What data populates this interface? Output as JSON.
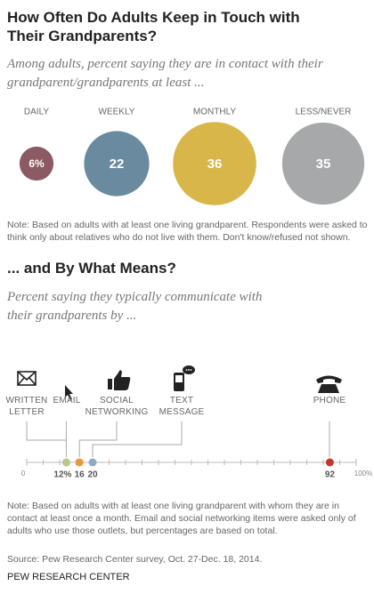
{
  "chart_data": [
    {
      "type": "bubble",
      "title": "How Often Do Adults Keep in Touch with Their Grandparents?",
      "subtitle": "Among adults, percent saying they are in contact with their grandparent/grandparents at least ...",
      "categories": [
        "DAILY",
        "WEEKLY",
        "MONTHLY",
        "LESS/NEVER"
      ],
      "values": [
        6,
        22,
        36,
        35
      ],
      "value_labels": [
        "6%",
        "22",
        "36",
        "35"
      ],
      "colors": [
        "#8b5a63",
        "#6a8aa0",
        "#d9b64a",
        "#a7a8aa"
      ],
      "note": "Note: Based on adults with at least one living grandparent. Respondents were asked to think only about relatives who do not live with them. Don't know/refused not shown."
    },
    {
      "type": "dot",
      "title": "... and By What Means?",
      "subtitle": "Percent saying they typically communicate with their grandparents by ...",
      "categories": [
        "WRITTEN LETTER",
        "EMAIL",
        "SOCIAL NETWORKING",
        "TEXT MESSAGE",
        "PHONE"
      ],
      "values": [
        12,
        12,
        16,
        20,
        92
      ],
      "value_labels": [
        null,
        "12%",
        "16",
        "20",
        "92"
      ],
      "colors": [
        "#b9c98c",
        "#b9c98c",
        "#e8993c",
        "#8eaac3",
        "#c0392b"
      ],
      "xlim": [
        0,
        100
      ],
      "xticks": [
        0,
        {
          "value": 100,
          "label": "100%"
        }
      ],
      "minor_xticks": [
        5,
        10,
        15,
        20,
        25,
        30,
        35,
        40,
        45,
        50,
        55,
        60,
        65,
        70,
        75,
        80,
        85,
        90,
        95
      ],
      "note": "Note: Based on adults with at least one living grandparent with whom they are in contact at least once a month. Email and social networking items were asked only of adults who use those outlets, but percentages are based on total."
    }
  ],
  "source": "Source: Pew Research Center survey, Oct. 27-Dec. 18, 2014.",
  "credit": "PEW RESEARCH CENTER"
}
